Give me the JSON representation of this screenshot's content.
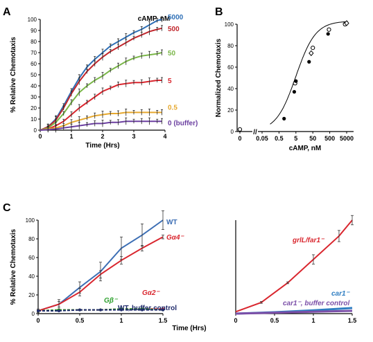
{
  "chart_data": [
    {
      "panel": "A",
      "type": "line",
      "xlabel": "Time (Hrs)",
      "ylabel": "% Relative Chemotaxis",
      "xlim": [
        0,
        4
      ],
      "ylim": [
        0,
        100
      ],
      "xticks": [
        "0",
        "1",
        "2",
        "3",
        "4"
      ],
      "yticks": [
        "0",
        "10",
        "20",
        "30",
        "40",
        "50",
        "60",
        "70",
        "80",
        "90",
        "100"
      ],
      "legend_title": "cAMP, nM",
      "error_bars": true,
      "series": [
        {
          "name": "5000",
          "color": "#2e6fb6",
          "x": [
            0,
            0.25,
            0.5,
            0.75,
            1.0,
            1.25,
            1.5,
            1.75,
            2.0,
            2.25,
            2.5,
            2.75,
            3.0,
            3.25,
            3.5,
            3.75,
            3.9
          ],
          "y": [
            0,
            3,
            10,
            22,
            35,
            47,
            57,
            64,
            70,
            76,
            80,
            84,
            88,
            91,
            95,
            99,
            100
          ]
        },
        {
          "name": "500",
          "color": "#c1272d",
          "x": [
            0,
            0.25,
            0.5,
            0.75,
            1.0,
            1.25,
            1.5,
            1.75,
            2.0,
            2.25,
            2.5,
            2.75,
            3.0,
            3.25,
            3.5,
            3.75,
            3.9
          ],
          "y": [
            0,
            3,
            9,
            20,
            33,
            44,
            53,
            60,
            66,
            71,
            75,
            79,
            83,
            86,
            89,
            91,
            92
          ]
        },
        {
          "name": "50",
          "color": "#7ab648",
          "x": [
            0,
            0.25,
            0.5,
            0.75,
            1.0,
            1.25,
            1.5,
            1.75,
            2.0,
            2.25,
            2.5,
            2.75,
            3.0,
            3.25,
            3.5,
            3.75,
            3.9
          ],
          "y": [
            0,
            2,
            7,
            15,
            25,
            34,
            40,
            45,
            49,
            54,
            58,
            62,
            65,
            67,
            68,
            69,
            70
          ]
        },
        {
          "name": "5",
          "color": "#d9262e",
          "x": [
            0,
            0.25,
            0.5,
            0.75,
            1.0,
            1.25,
            1.5,
            1.75,
            2.0,
            2.25,
            2.5,
            2.75,
            3.0,
            3.25,
            3.5,
            3.75,
            3.9
          ],
          "y": [
            0,
            1,
            4,
            8,
            14,
            20,
            25,
            30,
            35,
            38,
            41,
            42,
            43,
            43,
            44,
            45,
            45
          ]
        },
        {
          "name": "0.5",
          "color": "#e6a82e",
          "x": [
            0,
            0.25,
            0.5,
            0.75,
            1.0,
            1.25,
            1.5,
            1.75,
            2.0,
            2.25,
            2.5,
            2.75,
            3.0,
            3.25,
            3.5,
            3.75,
            3.9
          ],
          "y": [
            0,
            1,
            2,
            4,
            7,
            9,
            11,
            13,
            14,
            15,
            15,
            16,
            16,
            16,
            16,
            16,
            16
          ]
        },
        {
          "name": "0 (buffer)",
          "color": "#6b3fa0",
          "x": [
            0,
            0.25,
            0.5,
            0.75,
            1.0,
            1.25,
            1.5,
            1.75,
            2.0,
            2.25,
            2.5,
            2.75,
            3.0,
            3.25,
            3.5,
            3.75,
            3.9
          ],
          "y": [
            0,
            0.5,
            1,
            2,
            3,
            4,
            5,
            6,
            6,
            7,
            7,
            8,
            8,
            8,
            8,
            8,
            8
          ]
        }
      ]
    },
    {
      "panel": "B",
      "type": "scatter",
      "xlabel": "cAMP, nM",
      "ylabel": "Normalized Chemotaxis",
      "x_scale": "log",
      "axis_break": "//",
      "xticks": [
        "0",
        "0.05",
        "0.5",
        "5",
        "50",
        "500",
        "5000"
      ],
      "yticks": [
        "0",
        "20",
        "40",
        "60",
        "80",
        "100"
      ],
      "ylim": [
        0,
        100
      ],
      "fit_curve": true,
      "points": [
        {
          "x": 0,
          "y": 2,
          "marker": "open"
        },
        {
          "x": 1,
          "y": 12,
          "marker": "filled"
        },
        {
          "x": 4,
          "y": 37,
          "marker": "filled"
        },
        {
          "x": 4.5,
          "y": 45,
          "marker": "open"
        },
        {
          "x": 5,
          "y": 47,
          "marker": "filled"
        },
        {
          "x": 30,
          "y": 65,
          "marker": "filled"
        },
        {
          "x": 40,
          "y": 73,
          "marker": "open-diamond"
        },
        {
          "x": 50,
          "y": 78,
          "marker": "open"
        },
        {
          "x": 400,
          "y": 91,
          "marker": "filled"
        },
        {
          "x": 450,
          "y": 95,
          "marker": "open"
        },
        {
          "x": 4000,
          "y": 100,
          "marker": "open"
        },
        {
          "x": 5000,
          "y": 101,
          "marker": "open-diamond"
        }
      ]
    },
    {
      "panel": "C",
      "type": "line",
      "xlabel": "Time (Hrs)",
      "ylabel": "% Relative Chemotaxis",
      "xlim": [
        0,
        1.5
      ],
      "ylim": [
        0,
        100
      ],
      "xticks": [
        "0",
        "0.5",
        "1",
        "1.5"
      ],
      "yticks": [
        "0",
        "20",
        "40",
        "60",
        "80",
        "100"
      ],
      "error_bars": true,
      "series": [
        {
          "name": "WT",
          "color": "#3c6eb4",
          "x": [
            0,
            0.25,
            0.5,
            0.75,
            1.0,
            1.25,
            1.5
          ],
          "y": [
            3,
            10,
            28,
            45,
            70,
            84,
            100
          ],
          "err": [
            2,
            5,
            6,
            10,
            12,
            12,
            10
          ]
        },
        {
          "name": "Gα4⁻",
          "color": "#d9262e",
          "x": [
            0,
            0.25,
            0.5,
            0.75,
            1.0,
            1.25,
            1.5
          ],
          "y": [
            3,
            10,
            23,
            42,
            57,
            70,
            82
          ],
          "err": [
            1,
            3,
            4,
            4,
            4,
            3,
            2
          ]
        },
        {
          "name": "Gα2⁻",
          "color": "#d9262e",
          "x": [
            0,
            0.25,
            0.5,
            0.75,
            1.0,
            1.25,
            1.5
          ],
          "y": [
            3,
            4,
            4,
            4,
            5,
            5,
            5
          ]
        },
        {
          "name": "Gβ⁻",
          "color": "#2ca02c",
          "x": [
            0,
            0.25,
            0.5,
            0.75,
            1.0,
            1.25,
            1.5
          ],
          "y": [
            3,
            4,
            4,
            4,
            5,
            5,
            4
          ]
        },
        {
          "name": "WT, buffer control",
          "color": "#1f2a6b",
          "x": [
            0,
            0.25,
            0.5,
            0.75,
            1.0,
            1.25,
            1.5
          ],
          "y": [
            3,
            3,
            4,
            4,
            4,
            4,
            4
          ]
        }
      ]
    },
    {
      "panel": "C-right",
      "type": "line",
      "xlim": [
        0,
        1.5
      ],
      "ylim": [
        0,
        100
      ],
      "xticks": [
        "0",
        "0.5",
        "1",
        "1.5"
      ],
      "error_bars": true,
      "series": [
        {
          "name": "grlL/far1⁻",
          "color": "#d9262e",
          "x": [
            0,
            0.33,
            0.67,
            1.0,
            1.33,
            1.5
          ],
          "y": [
            2,
            12,
            33,
            58,
            83,
            100
          ],
          "err": [
            0,
            1,
            1,
            5,
            6,
            5
          ]
        },
        {
          "name": "car1⁻",
          "color": "#2e7dc1",
          "x": [
            0,
            0.5,
            1.0,
            1.5
          ],
          "y": [
            0,
            1.5,
            3.5,
            6
          ]
        },
        {
          "name": "car1⁻, buffer control",
          "color": "#7b4fa8",
          "x": [
            0,
            0.5,
            1.0,
            1.5
          ],
          "y": [
            0,
            1,
            2,
            3
          ]
        }
      ]
    }
  ],
  "panels": {
    "A": {
      "label": "A"
    },
    "B": {
      "label": "B"
    },
    "C": {
      "label": "C"
    }
  }
}
